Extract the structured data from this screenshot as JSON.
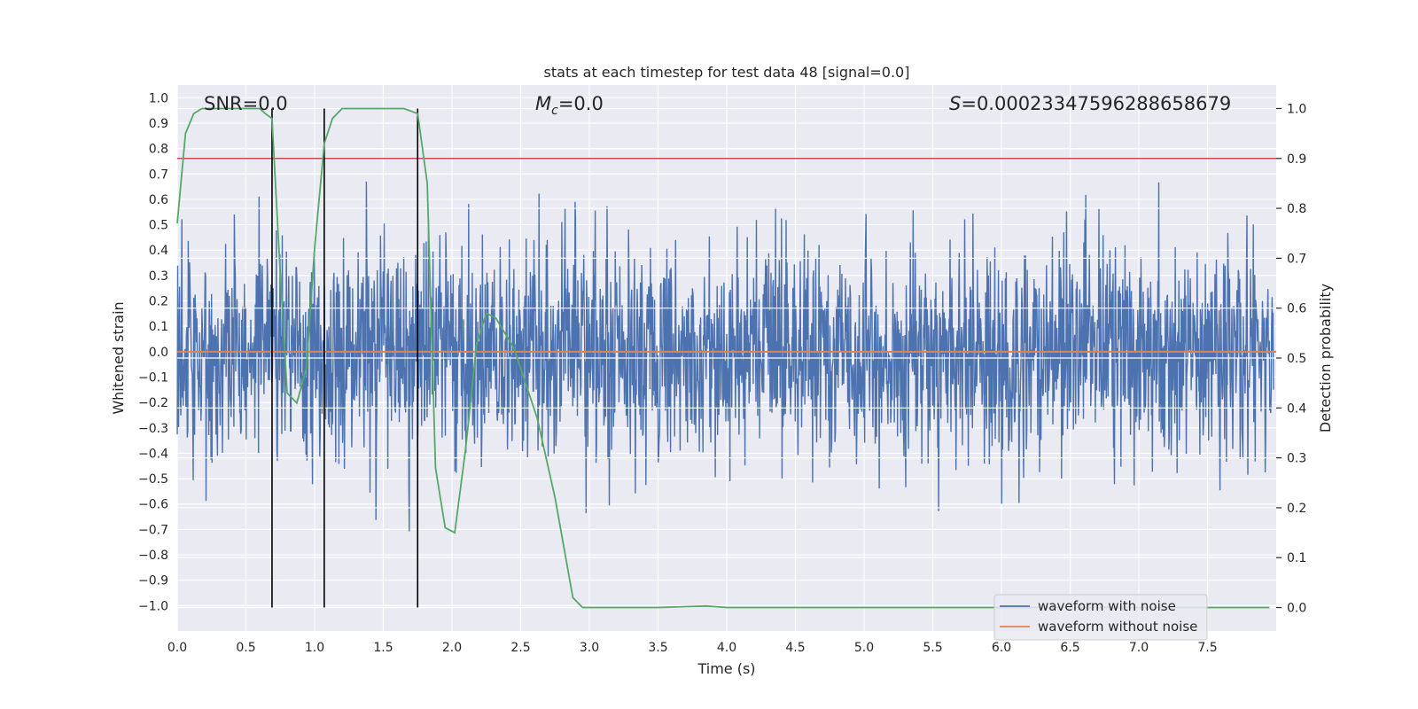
{
  "chart_data": {
    "type": "line",
    "title": "stats at each timestep for test data 48 [signal=0.0]",
    "xlabel": "Time (s)",
    "ylabel": "Whitened strain",
    "y2label": "Detection probability",
    "xlim": [
      0.0,
      8.0
    ],
    "ylim": [
      -1.1,
      1.05
    ],
    "y2lim": [
      -0.047,
      1.047
    ],
    "x_ticks": [
      "0.0",
      "0.5",
      "1.0",
      "1.5",
      "2.0",
      "2.5",
      "3.0",
      "3.5",
      "4.0",
      "4.5",
      "5.0",
      "5.5",
      "6.0",
      "6.5",
      "7.0",
      "7.5"
    ],
    "y_ticks": [
      "1.0",
      "0.9",
      "0.8",
      "0.7",
      "0.6",
      "0.5",
      "0.4",
      "0.3",
      "0.2",
      "0.1",
      "0.0",
      "−0.1",
      "−0.2",
      "−0.3",
      "−0.4",
      "−0.5",
      "−0.6",
      "−0.7",
      "−0.8",
      "−0.9",
      "−1.0"
    ],
    "y2_ticks": [
      "1.0",
      "0.9",
      "0.8",
      "0.7",
      "0.6",
      "0.5",
      "0.4",
      "0.3",
      "0.2",
      "0.1",
      "0.0"
    ],
    "grid": true,
    "legend_position": "bottom-right",
    "annotations": {
      "snr": "SNR=0.0",
      "mc_symbol": "M",
      "mc_sub": "c",
      "mc_value": "=0.0",
      "s_symbol": "S",
      "s_value": "=0.00023347596288658679"
    },
    "threshold": 0.9,
    "vertical_markers": [
      0.69,
      1.07,
      1.75
    ],
    "series": [
      {
        "name": "waveform with noise",
        "color": "#4c72b0",
        "amplitude_envelope": [
          -1.0,
          0.93
        ]
      },
      {
        "name": "waveform without noise",
        "color": "#dd8452",
        "values_constant": 0.0
      },
      {
        "color": "#55a868",
        "axis": "right",
        "x": [
          0.0,
          0.06,
          0.12,
          0.18,
          0.3,
          0.45,
          0.6,
          0.64,
          0.69,
          0.74,
          0.8,
          0.87,
          0.94,
          1.0,
          1.07,
          1.13,
          1.2,
          1.3,
          1.5,
          1.65,
          1.75,
          1.82,
          1.88,
          1.95,
          2.02,
          2.1,
          2.18,
          2.25,
          2.32,
          2.45,
          2.62,
          2.75,
          2.88,
          2.95,
          3.1,
          3.5,
          3.85,
          4.0,
          4.5,
          5.0,
          6.0,
          7.0,
          7.95
        ],
        "values": [
          0.77,
          0.95,
          0.99,
          1.0,
          1.0,
          1.0,
          1.0,
          0.99,
          0.98,
          0.72,
          0.43,
          0.41,
          0.48,
          0.72,
          0.93,
          0.98,
          1.0,
          1.0,
          1.0,
          1.0,
          0.99,
          0.85,
          0.28,
          0.16,
          0.15,
          0.32,
          0.53,
          0.59,
          0.58,
          0.52,
          0.38,
          0.22,
          0.02,
          0.0,
          0.0,
          0.0,
          0.003,
          0.0,
          0.0,
          0.0,
          0.0,
          0.0,
          0.0
        ]
      }
    ]
  }
}
